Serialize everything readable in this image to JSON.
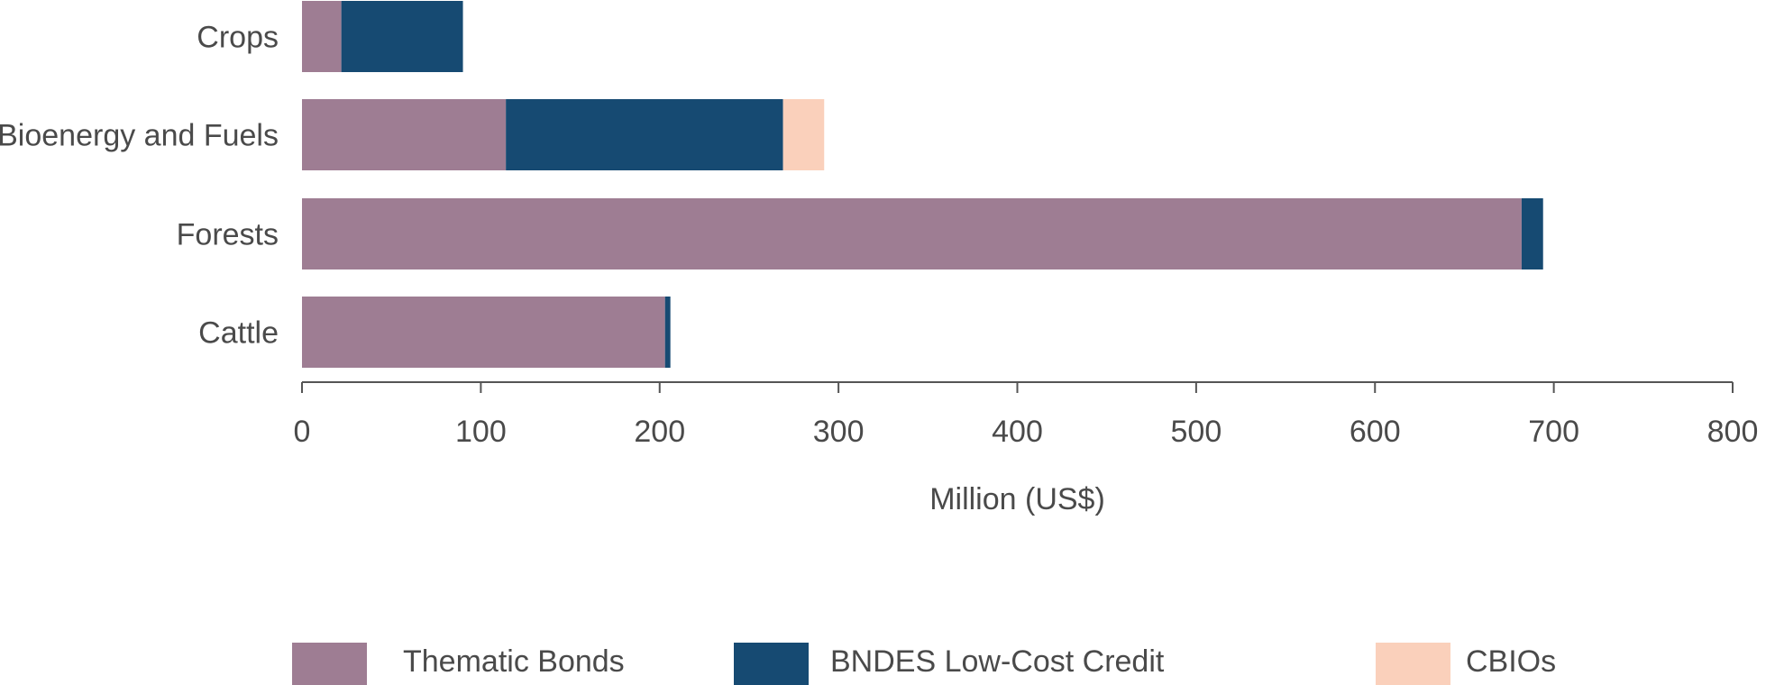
{
  "chart_data": {
    "type": "bar",
    "orientation": "horizontal",
    "stacked": true,
    "categories": [
      "Crops",
      "Bioenergy and Fuels",
      "Forests",
      "Cattle"
    ],
    "series": [
      {
        "name": "Thematic Bonds",
        "color": "#9e7d93",
        "values": [
          22,
          114,
          682,
          203
        ]
      },
      {
        "name": "BNDES Low-Cost Credit",
        "color": "#164a72",
        "values": [
          68,
          155,
          12,
          3
        ]
      },
      {
        "name": "CBIOs",
        "color": "#fad0bb",
        "values": [
          0,
          23,
          0,
          0
        ]
      }
    ],
    "xlabel": "Million (US$)",
    "ylabel": "",
    "xlim": [
      0,
      800
    ],
    "xticks": [
      "0",
      "100",
      "200",
      "300",
      "400",
      "500",
      "600",
      "700",
      "800"
    ],
    "grid": false,
    "legend_position": "bottom"
  }
}
